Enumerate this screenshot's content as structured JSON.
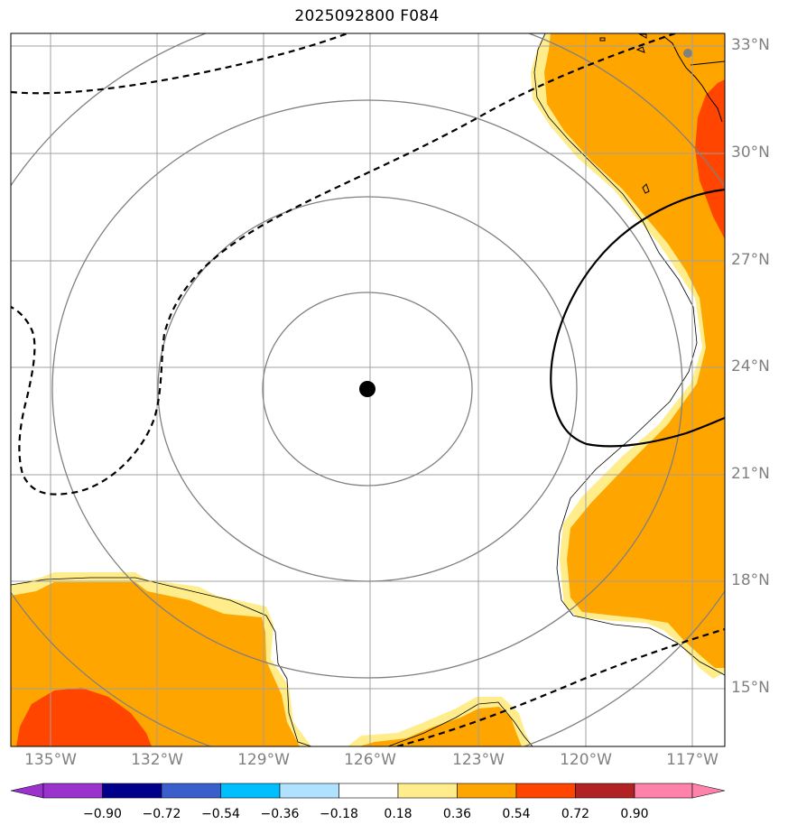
{
  "title": "2025092800 F084",
  "map": {
    "lat_labels": [
      "33°N",
      "30°N",
      "27°N",
      "24°N",
      "21°N",
      "18°N",
      "15°N"
    ],
    "lon_labels": [
      "135°W",
      "132°W",
      "129°W",
      "126°W",
      "123°W",
      "120°W",
      "117°W"
    ],
    "center_marker": "storm-center",
    "range_rings": 4
  },
  "colorbar": {
    "labels": [
      "−0.90",
      "−0.72",
      "−0.54",
      "−0.36",
      "−0.18",
      "0.18",
      "0.36",
      "0.54",
      "0.72",
      "0.90"
    ],
    "colors": [
      "#9a32cd",
      "#00008b",
      "#3a5fcd",
      "#00bfff",
      "#b0e2ff",
      "#ffffff",
      "#ffec8b",
      "#ffa500",
      "#ff4500",
      "#b22222",
      "#ff82ab"
    ]
  },
  "colors": {
    "land_ocean_low": "#ffec8b",
    "mid": "#ffa500",
    "high": "#ff4500",
    "grid": "#a0a0a0",
    "rings": "#808080"
  }
}
